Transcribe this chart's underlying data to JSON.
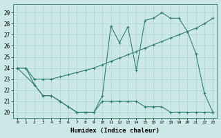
{
  "line1_x": [
    0,
    1,
    2,
    3,
    4,
    5,
    6,
    7,
    8,
    9,
    10,
    11,
    12,
    13,
    14,
    15,
    16,
    17,
    18,
    19,
    20,
    21,
    22,
    23
  ],
  "line1_y": [
    24,
    24,
    22.5,
    21.5,
    21.5,
    21,
    20.5,
    20,
    20,
    20,
    21,
    21,
    21,
    21,
    21,
    20.5,
    20.5,
    20.5,
    20,
    20,
    20,
    20,
    20,
    20
  ],
  "line2_x": [
    0,
    1,
    2,
    3,
    4,
    5,
    6,
    7,
    8,
    9,
    10,
    11,
    12,
    13,
    14,
    15,
    16,
    17,
    18,
    19,
    20,
    21,
    22,
    23
  ],
  "line2_y": [
    24,
    24,
    23,
    23,
    23,
    23.2,
    23.4,
    23.6,
    23.8,
    24.0,
    24.3,
    24.6,
    24.9,
    25.2,
    25.5,
    25.8,
    26.1,
    26.4,
    26.7,
    27.0,
    27.3,
    27.6,
    28.0,
    28.5
  ],
  "line3_x": [
    0,
    2,
    3,
    4,
    5,
    6,
    7,
    8,
    9,
    10,
    11,
    12,
    13,
    14,
    15,
    16,
    17,
    18,
    19,
    20,
    21,
    22,
    23
  ],
  "line3_y": [
    24,
    22.5,
    21.5,
    21.5,
    21,
    20.5,
    20,
    20,
    20,
    21.5,
    27.8,
    26.3,
    27.7,
    23.8,
    28.3,
    28.5,
    29,
    28.5,
    28.5,
    27.3,
    25.3,
    21.7,
    20
  ],
  "line_color": "#2e7d6e",
  "bg_color": "#cce8e6",
  "grid_color": "#aad4d0",
  "xlabel": "Humidex (Indice chaleur)",
  "ylabel_ticks": [
    20,
    21,
    22,
    23,
    24,
    25,
    26,
    27,
    28,
    29
  ],
  "xtick_labels": [
    "0",
    "1",
    "2",
    "3",
    "4",
    "5",
    "6",
    "7",
    "8",
    "9",
    "10",
    "11",
    "12",
    "13",
    "14",
    "15",
    "16",
    "17",
    "18",
    "19",
    "20",
    "21",
    "22",
    "23"
  ],
  "xlim": [
    -0.5,
    23.5
  ],
  "ylim": [
    19.5,
    29.8
  ],
  "marker": "+",
  "markersize": 3,
  "linewidth": 0.8
}
